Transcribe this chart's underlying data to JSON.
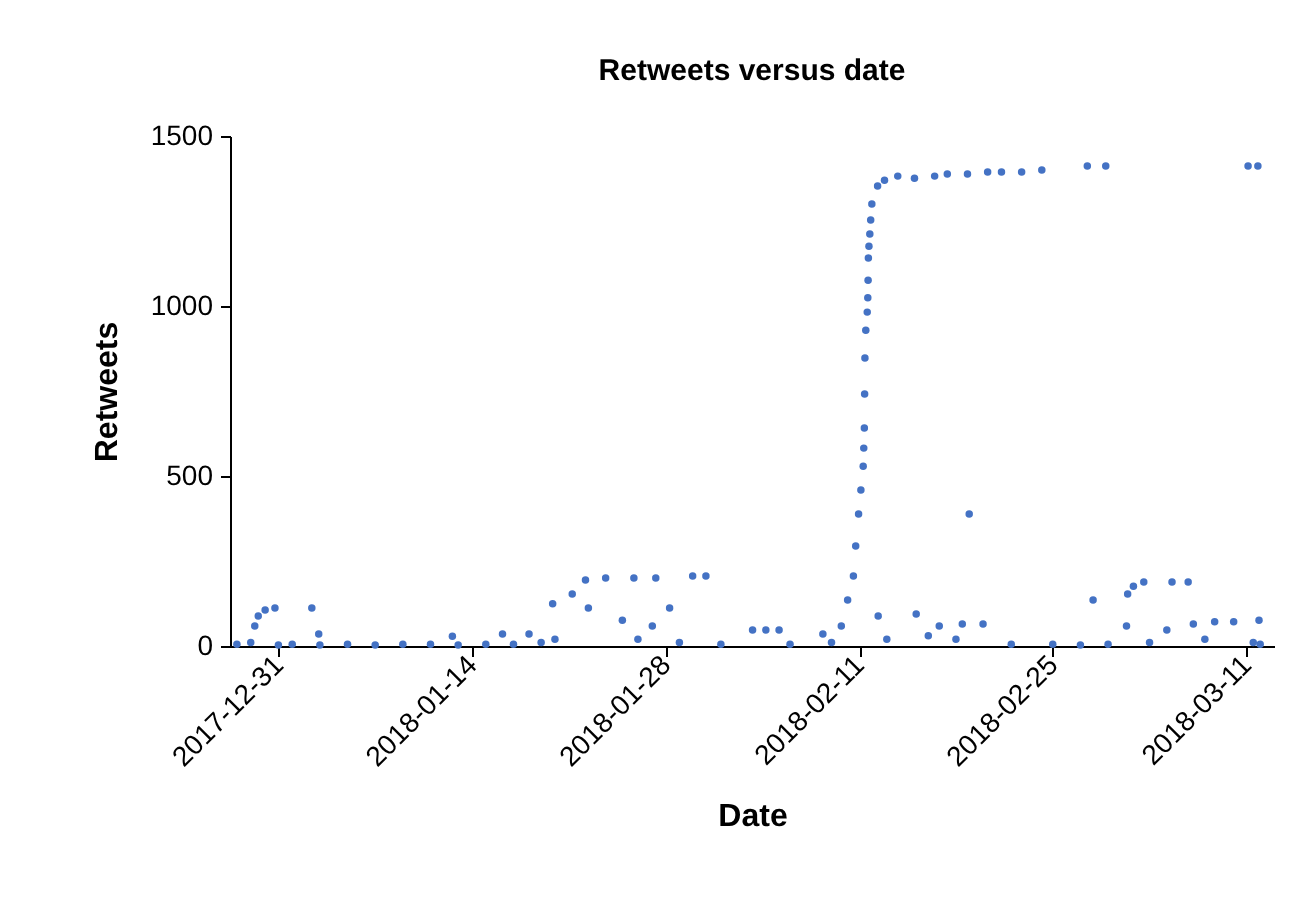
{
  "chart_data": {
    "type": "scatter",
    "title": "Retweets versus date",
    "xlabel": "Date",
    "ylabel": "Retweets",
    "color": "#4472c4",
    "marker": "circle",
    "grid": false,
    "legend": false,
    "xlim": [
      "2017-12-27T12:00",
      "2018-03-13T00:00"
    ],
    "xticks": [
      "2017-12-31",
      "2018-01-14",
      "2018-01-28",
      "2018-02-11",
      "2018-02-25",
      "2018-03-11"
    ],
    "ylim": [
      0,
      1500
    ],
    "yticks": [
      0,
      500,
      1000,
      1500
    ],
    "x": [
      "2017-12-28T00:00",
      "2017-12-29T00:00",
      "2017-12-29T07:00",
      "2017-12-29T13:00",
      "2017-12-30T01:00",
      "2017-12-30T18:00",
      "2017-12-31T00:00",
      "2018-01-01T00:00",
      "2018-01-02T10:00",
      "2018-01-02T22:00",
      "2018-01-03T00:00",
      "2018-01-05T00:00",
      "2018-01-07T00:00",
      "2018-01-09T00:00",
      "2018-01-11T00:00",
      "2018-01-12T14:00",
      "2018-01-13T00:00",
      "2018-01-15T00:00",
      "2018-01-16T05:00",
      "2018-01-17T00:00",
      "2018-01-18T03:00",
      "2018-01-19T00:00",
      "2018-01-19T20:00",
      "2018-01-20T00:00",
      "2018-01-21T06:00",
      "2018-01-22T05:00",
      "2018-01-22T10:00",
      "2018-01-23T16:00",
      "2018-01-24T21:00",
      "2018-01-25T17:00",
      "2018-01-26T00:00",
      "2018-01-27T01:00",
      "2018-01-27T07:00",
      "2018-01-28T07:00",
      "2018-01-29T00:00",
      "2018-01-29T23:00",
      "2018-01-30T22:00",
      "2018-02-01T00:00",
      "2018-02-03T07:00",
      "2018-02-04T06:00",
      "2018-02-05T05:00",
      "2018-02-06T00:00",
      "2018-02-08T09:00",
      "2018-02-09T00:00",
      "2018-02-09T17:00",
      "2018-02-10T04:00",
      "2018-02-10T14:00",
      "2018-02-10T18:00",
      "2018-02-10T23:00",
      "2018-02-11T03:00",
      "2018-02-11T07:00",
      "2018-02-11T08:00",
      "2018-02-11T09:00",
      "2018-02-11T09:30",
      "2018-02-11T10:00",
      "2018-02-11T11:30",
      "2018-02-11T14:00",
      "2018-02-11T15:00",
      "2018-02-11T15:30",
      "2018-02-11T16:00",
      "2018-02-11T17:00",
      "2018-02-11T18:30",
      "2018-02-11T20:00",
      "2018-02-11T22:00",
      "2018-02-12T08:00",
      "2018-02-12T09:00",
      "2018-02-12T20:00",
      "2018-02-13T00:00",
      "2018-02-13T19:00",
      "2018-02-15T00:00",
      "2018-02-15T03:00",
      "2018-02-16T00:00",
      "2018-02-16T11:00",
      "2018-02-16T19:00",
      "2018-02-17T09:00",
      "2018-02-18T00:00",
      "2018-02-18T11:00",
      "2018-02-18T20:00",
      "2018-02-18T23:00",
      "2018-02-19T23:00",
      "2018-02-20T07:00",
      "2018-02-21T07:00",
      "2018-02-22T00:00",
      "2018-02-22T18:00",
      "2018-02-24T05:00",
      "2018-02-25T00:00",
      "2018-02-27T00:00",
      "2018-02-27T12:00",
      "2018-02-27T22:00",
      "2018-02-28T20:00",
      "2018-03-01T00:00",
      "2018-03-02T08:00",
      "2018-03-02T10:00",
      "2018-03-02T20:00",
      "2018-03-03T14:00",
      "2018-03-04T00:00",
      "2018-03-05T06:00",
      "2018-03-05T15:00",
      "2018-03-06T19:00",
      "2018-03-07T04:00",
      "2018-03-08T00:00",
      "2018-03-08T17:00",
      "2018-03-10T02:00",
      "2018-03-11T03:00",
      "2018-03-11T12:00",
      "2018-03-11T20:00",
      "2018-03-11T22:00",
      "2018-03-12T00:00"
    ],
    "values": [
      5,
      10,
      59,
      88,
      106,
      112,
      3,
      5,
      112,
      35,
      3,
      5,
      3,
      5,
      5,
      29,
      3,
      5,
      35,
      5,
      35,
      10,
      124,
      20,
      153,
      194,
      112,
      200,
      76,
      200,
      20,
      59,
      200,
      112,
      10,
      206,
      206,
      5,
      47,
      47,
      47,
      5,
      35,
      10,
      59,
      135,
      206,
      294,
      388,
      459,
      529,
      582,
      641,
      741,
      847,
      929,
      982,
      1024,
      1076,
      1141,
      1176,
      1212,
      1253,
      1300,
      1353,
      88,
      1370,
      20,
      1382,
      1376,
      94,
      30,
      1382,
      59,
      1388,
      20,
      65,
      1388,
      388,
      65,
      1394,
      1394,
      5,
      1394,
      1400,
      5,
      3,
      1412,
      135,
      1412,
      5,
      59,
      153,
      176,
      188,
      10,
      47,
      188,
      188,
      65,
      20,
      71,
      71,
      1412,
      10,
      1412,
      76,
      5
    ]
  }
}
